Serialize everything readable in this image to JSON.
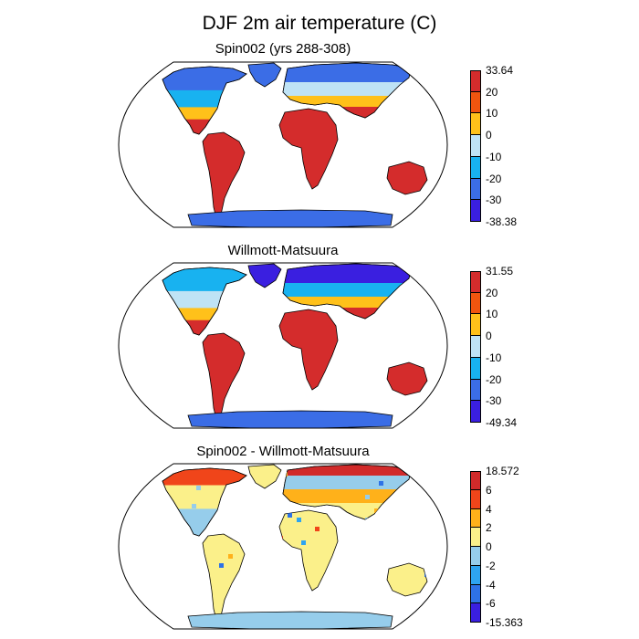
{
  "title": "DJF 2m air temperature (C)",
  "panels": [
    {
      "id": "spin",
      "title": "Spin002 (yrs 288-308)",
      "colorbar": {
        "colors": [
          "#3a1fe0",
          "#3b6de6",
          "#18b2f0",
          "#bfe3f5",
          "#ffc11a",
          "#f0550f",
          "#d42c2c"
        ],
        "labels": [
          "-38.38",
          "-30",
          "-20",
          "-10",
          "0",
          "10",
          "20",
          "33.64"
        ]
      }
    },
    {
      "id": "wm",
      "title": "Willmott-Matsuura",
      "colorbar": {
        "colors": [
          "#3a1fe0",
          "#3b6de6",
          "#18b2f0",
          "#bfe3f5",
          "#ffc11a",
          "#f0550f",
          "#d42c2c"
        ],
        "labels": [
          "-49.34",
          "-30",
          "-20",
          "-10",
          "0",
          "10",
          "20",
          "31.55"
        ]
      }
    },
    {
      "id": "diff",
      "title": "Spin002 - Willmott-Matsuura",
      "colorbar": {
        "colors": [
          "#3a1fe0",
          "#2e72e6",
          "#2ea4f0",
          "#96cdeb",
          "#fbf08a",
          "#ffb11a",
          "#f0451a",
          "#d12a2a"
        ],
        "labels": [
          "-15.363",
          "-6",
          "-4",
          "-2",
          "0",
          "2",
          "4",
          "6",
          "18.572"
        ]
      }
    }
  ]
}
